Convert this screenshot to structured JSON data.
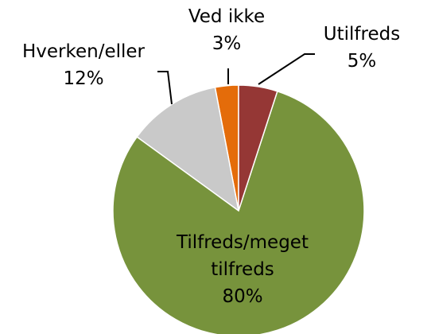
{
  "chart_data": {
    "type": "pie",
    "categories": [
      "Utilfreds",
      "Tilfreds/meget tilfreds",
      "Hverken/eller",
      "Ved ikke"
    ],
    "values": [
      5,
      80,
      12,
      3
    ],
    "value_labels": [
      "5%",
      "80%",
      "12%",
      "3%"
    ],
    "colors": [
      "#953735",
      "#77933c",
      "#c9c9c9",
      "#e46c0a"
    ]
  }
}
